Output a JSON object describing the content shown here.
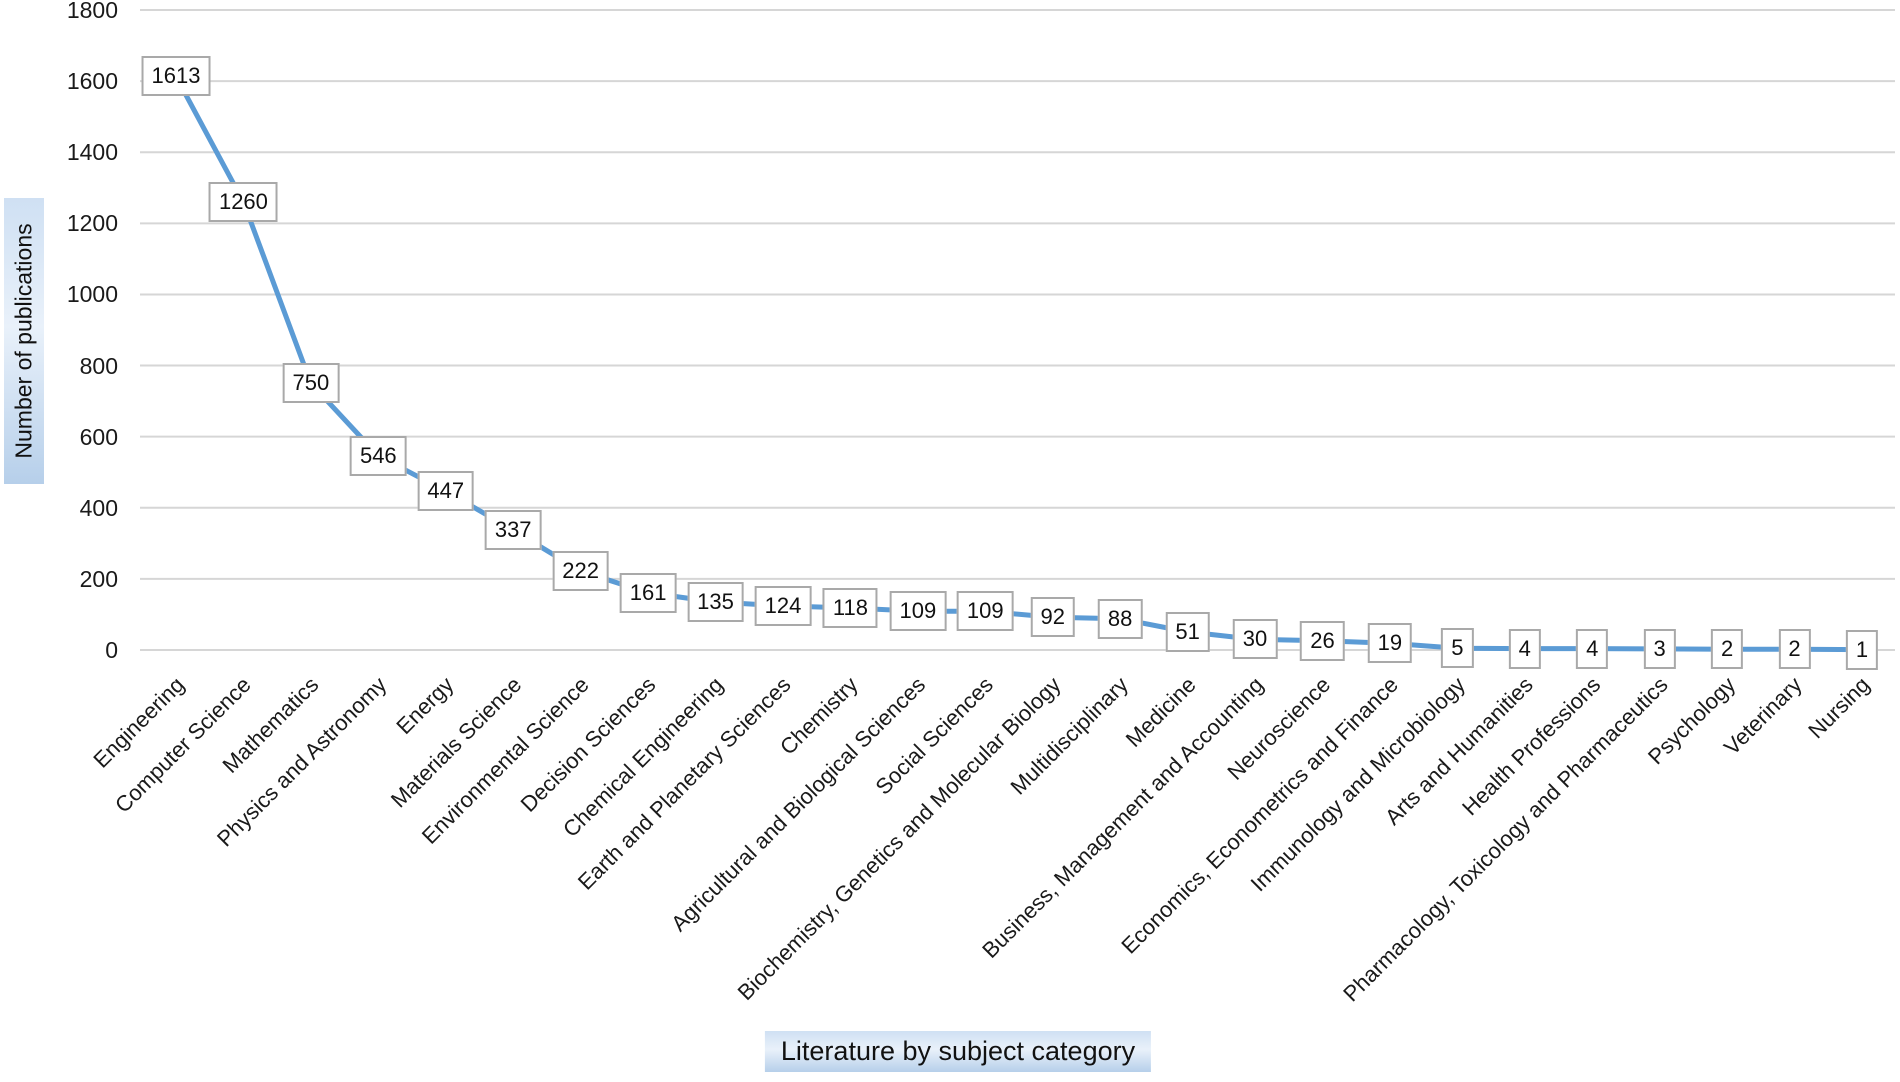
{
  "chart_data": {
    "type": "line",
    "title": "",
    "xlabel": "Literature by subject category",
    "ylabel": "Number of publications",
    "categories": [
      "Engineering",
      "Computer Science",
      "Mathematics",
      "Physics and Astronomy",
      "Energy",
      "Materials Science",
      "Environmental Science",
      "Decision Sciences",
      "Chemical Engineering",
      "Earth and Planetary Sciences",
      "Chemistry",
      "Agricultural and Biological Sciences",
      "Social Sciences",
      "Biochemistry, Genetics and Molecular Biology",
      "Multidisciplinary",
      "Medicine",
      "Business, Management and Accounting",
      "Neuroscience",
      "Economics, Econometrics and Finance",
      "Immunology and Microbiology",
      "Arts and Humanities",
      "Health Professions",
      "Pharmacology, Toxicology and Pharmaceutics",
      "Psychology",
      "Veterinary",
      "Nursing"
    ],
    "values": [
      1613,
      1260,
      750,
      546,
      447,
      337,
      222,
      161,
      135,
      124,
      118,
      109,
      109,
      92,
      88,
      51,
      30,
      26,
      19,
      5,
      4,
      4,
      3,
      2,
      2,
      1
    ],
    "ylim": [
      0,
      1800
    ],
    "yticks": [
      0,
      200,
      400,
      600,
      800,
      1000,
      1200,
      1400,
      1600,
      1800
    ],
    "grid": "horizontal",
    "legend": "none",
    "data_labels": "boxed values centered on each point",
    "x_label_rotation_deg": -45,
    "colors": {
      "line": "#5B9BD5",
      "gridline": "#D6D6D6",
      "label_box_border": "#A9A9A9",
      "label_box_fill": "#FFFFFF",
      "text": "#1A1A1A",
      "axis_title_highlight": "#BCD5EE"
    }
  }
}
